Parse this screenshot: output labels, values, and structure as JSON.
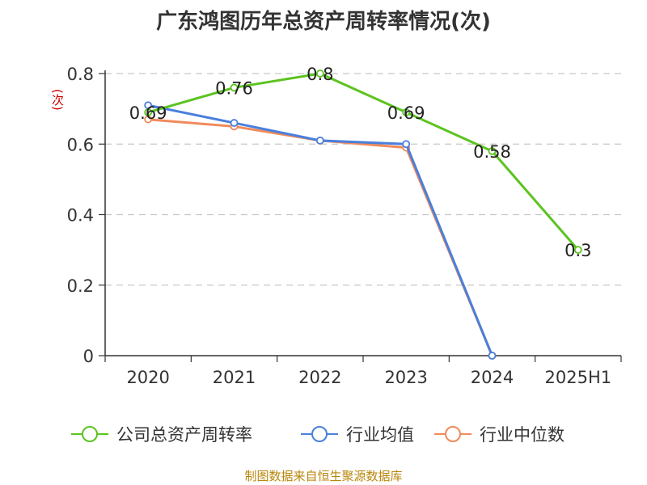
{
  "chart_data": {
    "type": "line",
    "title": "广东鸿图历年总资产周转率情况(次)",
    "ylabel": "(次)",
    "xlabel": "",
    "categories": [
      "2020",
      "2021",
      "2022",
      "2023",
      "2024",
      "2025H1"
    ],
    "ylim": [
      0,
      0.8
    ],
    "yticks": [
      0,
      0.2,
      0.4,
      0.6,
      0.8
    ],
    "ytick_labels": [
      "0",
      "0.2",
      "0.4",
      "0.6",
      "0.8"
    ],
    "grid": true,
    "legend_position": "bottom",
    "series": [
      {
        "name": "公司总资产周转率",
        "color": "#5cc31f",
        "values": [
          0.69,
          0.76,
          0.8,
          0.69,
          0.58,
          0.3
        ],
        "data_labels": [
          "0.69",
          "0.76",
          "0.8",
          "0.69",
          "0.58",
          "0.3"
        ]
      },
      {
        "name": "行业均值",
        "color": "#4a7fdc",
        "values": [
          0.71,
          0.66,
          0.61,
          0.6,
          0,
          null
        ]
      },
      {
        "name": "行业中位数",
        "color": "#f08a5b",
        "values": [
          0.67,
          0.65,
          0.61,
          0.59,
          0,
          null
        ]
      }
    ]
  },
  "source": "制图数据来自恒生聚源数据库"
}
